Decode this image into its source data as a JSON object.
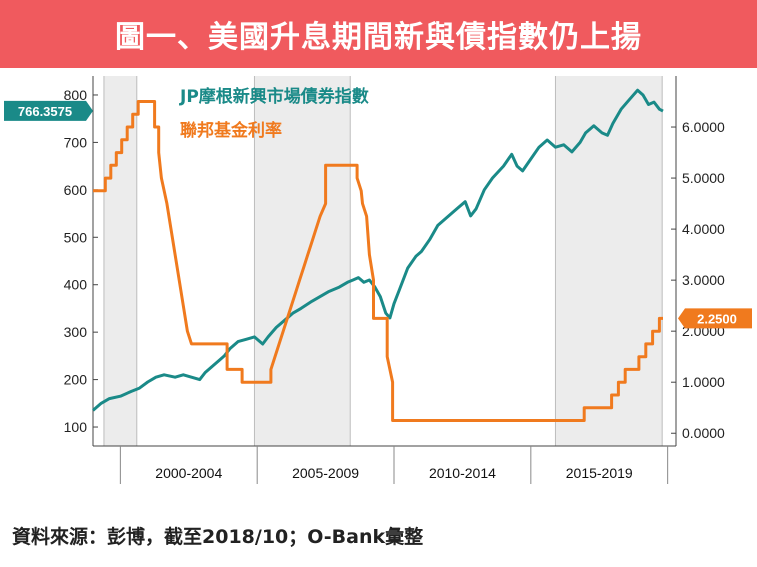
{
  "title": "圖一、美國升息期間新與債指數仍上揚",
  "source_note": "資料來源：彭博，截至2018/10；O-Bank彙整",
  "chart_data": {
    "type": "line",
    "title": "圖一、美國升息期間新與債指數仍上揚",
    "x_range": [
      1998.0,
      2018.83
    ],
    "left_axis": {
      "range": [
        60,
        840
      ],
      "ticks": [
        100,
        200,
        300,
        400,
        500,
        600,
        700,
        800
      ]
    },
    "right_axis": {
      "range": [
        -0.25,
        7.0
      ],
      "ticks": [
        "0.0000",
        "1.0000",
        "2.0000",
        "3.0000",
        "4.0000",
        "5.0000",
        "6.0000"
      ]
    },
    "period_labels": [
      {
        "label": "2000-2004",
        "center": 2001.5
      },
      {
        "label": "2005-2009",
        "center": 2006.5
      },
      {
        "label": "2010-2014",
        "center": 2011.5
      },
      {
        "label": "2015-2019",
        "center": 2016.5
      }
    ],
    "period_dividers": [
      1999.0,
      2004.0,
      2009.0,
      2014.0,
      2019.0
    ],
    "shaded_periods": [
      [
        1998.4,
        1999.6
      ],
      [
        2003.9,
        2007.4
      ],
      [
        2014.9,
        2018.8
      ]
    ],
    "series": [
      {
        "name": "JP摩根新興市場債券指數",
        "axis": "left",
        "color": "#1a8a88",
        "last_value_label": "766.3575",
        "x": [
          1998.0,
          1998.3,
          1998.6,
          1999.0,
          1999.4,
          1999.7,
          2000.0,
          2000.3,
          2000.6,
          2001.0,
          2001.3,
          2001.6,
          2001.9,
          2002.1,
          2002.4,
          2002.6,
          2002.8,
          2003.0,
          2003.3,
          2003.6,
          2003.9,
          2004.2,
          2004.4,
          2004.7,
          2005.0,
          2005.3,
          2005.6,
          2006.0,
          2006.3,
          2006.6,
          2007.0,
          2007.3,
          2007.5,
          2007.7,
          2007.9,
          2008.1,
          2008.3,
          2008.5,
          2008.7,
          2008.85,
          2009.0,
          2009.2,
          2009.5,
          2009.8,
          2010.0,
          2010.3,
          2010.6,
          2011.0,
          2011.3,
          2011.6,
          2011.8,
          2012.0,
          2012.3,
          2012.6,
          2013.0,
          2013.3,
          2013.5,
          2013.7,
          2014.0,
          2014.3,
          2014.6,
          2014.9,
          2015.2,
          2015.5,
          2015.8,
          2016.0,
          2016.3,
          2016.6,
          2016.8,
          2017.0,
          2017.3,
          2017.6,
          2017.9,
          2018.1,
          2018.3,
          2018.5,
          2018.7,
          2018.83
        ],
        "y": [
          135,
          150,
          160,
          165,
          175,
          182,
          195,
          205,
          210,
          205,
          210,
          205,
          200,
          215,
          230,
          240,
          250,
          265,
          280,
          285,
          290,
          275,
          290,
          310,
          325,
          340,
          350,
          365,
          375,
          385,
          395,
          405,
          410,
          415,
          405,
          410,
          395,
          375,
          340,
          330,
          360,
          390,
          435,
          460,
          470,
          495,
          525,
          545,
          560,
          575,
          545,
          560,
          600,
          625,
          650,
          675,
          650,
          640,
          665,
          690,
          705,
          690,
          695,
          680,
          700,
          720,
          735,
          720,
          715,
          740,
          770,
          790,
          810,
          800,
          780,
          785,
          770,
          766
        ]
      },
      {
        "name": "聯邦基金利率",
        "axis": "right",
        "color": "#f07a1e",
        "last_value_label": "2.2500",
        "x": [
          1998.0,
          1998.45,
          1998.45,
          1998.65,
          1998.65,
          1998.85,
          1998.85,
          1999.05,
          1999.05,
          1999.25,
          1999.25,
          1999.45,
          1999.45,
          1999.65,
          1999.65,
          1999.85,
          1999.85,
          2000.25,
          2000.25,
          2000.4,
          2000.4,
          2000.5,
          2000.7,
          2000.85,
          2001.0,
          2001.15,
          2001.3,
          2001.45,
          2001.6,
          2001.8,
          2001.95,
          2002.9,
          2002.9,
          2003.45,
          2003.45,
          2004.5,
          2004.5,
          2004.65,
          2004.8,
          2004.95,
          2005.1,
          2005.25,
          2005.4,
          2005.55,
          2005.7,
          2005.85,
          2006.0,
          2006.15,
          2006.3,
          2006.5,
          2006.5,
          2007.65,
          2007.65,
          2007.8,
          2007.85,
          2008.0,
          2008.1,
          2008.25,
          2008.25,
          2008.75,
          2008.75,
          2008.95,
          2008.95,
          2015.95,
          2015.95,
          2016.95,
          2016.95,
          2017.2,
          2017.2,
          2017.45,
          2017.45,
          2017.95,
          2017.95,
          2018.2,
          2018.2,
          2018.45,
          2018.45,
          2018.7,
          2018.7,
          2018.83
        ],
        "y": [
          4.75,
          4.75,
          5.0,
          5.0,
          5.25,
          5.25,
          5.5,
          5.5,
          5.75,
          5.75,
          6.0,
          6.0,
          6.25,
          6.25,
          6.5,
          6.5,
          6.5,
          6.5,
          6.0,
          6.0,
          5.5,
          5.0,
          4.5,
          4.0,
          3.5,
          3.0,
          2.5,
          2.0,
          1.75,
          1.75,
          1.75,
          1.75,
          1.25,
          1.25,
          1.0,
          1.0,
          1.25,
          1.5,
          1.75,
          2.0,
          2.25,
          2.5,
          2.75,
          3.0,
          3.25,
          3.5,
          3.75,
          4.0,
          4.25,
          4.5,
          5.25,
          5.25,
          5.0,
          4.75,
          4.5,
          4.25,
          3.5,
          3.0,
          2.25,
          2.25,
          1.5,
          1.0,
          0.25,
          0.25,
          0.5,
          0.5,
          0.75,
          0.75,
          1.0,
          1.0,
          1.25,
          1.25,
          1.5,
          1.5,
          1.75,
          1.75,
          2.0,
          2.0,
          2.25,
          2.25
        ]
      }
    ]
  }
}
